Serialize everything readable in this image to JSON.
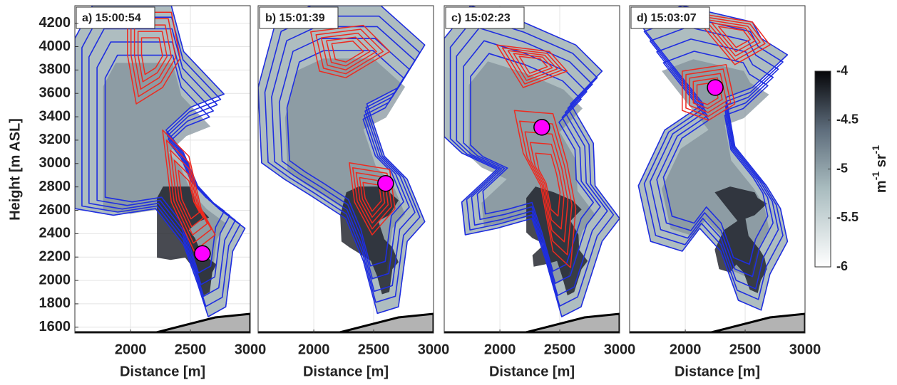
{
  "chart_data": [
    {
      "type": "scatter",
      "title": "a) 15:00:54",
      "x": [
        2600
      ],
      "values": [
        2230
      ],
      "color": "#ff00ff",
      "xlabel": "Distance [m]",
      "ylabel": "Height [m ASL]",
      "xlim": [
        1535,
        3000
      ],
      "ylim": [
        1550,
        4350
      ],
      "xticks": [
        2000,
        2500,
        3000
      ],
      "yticks": [
        1600,
        1800,
        2000,
        2200,
        2400,
        2600,
        2800,
        3000,
        3200,
        3400,
        3600,
        3800,
        4000,
        4200
      ],
      "grid": true
    },
    {
      "type": "scatter",
      "title": "b) 15:01:39",
      "x": [
        2600
      ],
      "values": [
        2830
      ],
      "color": "#ff00ff",
      "xlabel": "Distance [m]",
      "xlim": [
        1535,
        3000
      ],
      "ylim": [
        1550,
        4350
      ],
      "xticks": [
        2000,
        2500,
        3000
      ],
      "grid": true
    },
    {
      "type": "scatter",
      "title": "c) 15:02:23",
      "x": [
        2350
      ],
      "values": [
        3310
      ],
      "color": "#ff00ff",
      "xlabel": "Distance [m]",
      "xlim": [
        1535,
        3000
      ],
      "ylim": [
        1550,
        4350
      ],
      "xticks": [
        2000,
        2500,
        3000
      ],
      "grid": true
    },
    {
      "type": "scatter",
      "title": "d) 15:03:07",
      "x": [
        2250
      ],
      "values": [
        3650
      ],
      "color": "#ff00ff",
      "xlabel": "Distance [m]",
      "xlim": [
        1535,
        3000
      ],
      "ylim": [
        1550,
        4350
      ],
      "xticks": [
        2000,
        2500,
        3000
      ],
      "grid": true
    }
  ],
  "colorbar": {
    "lim": [
      -6,
      -4
    ],
    "ticks": [
      -4,
      -4.5,
      -5,
      -5.5,
      -6
    ],
    "label_parts": [
      "m",
      "-1",
      " sr",
      "-1"
    ]
  }
}
